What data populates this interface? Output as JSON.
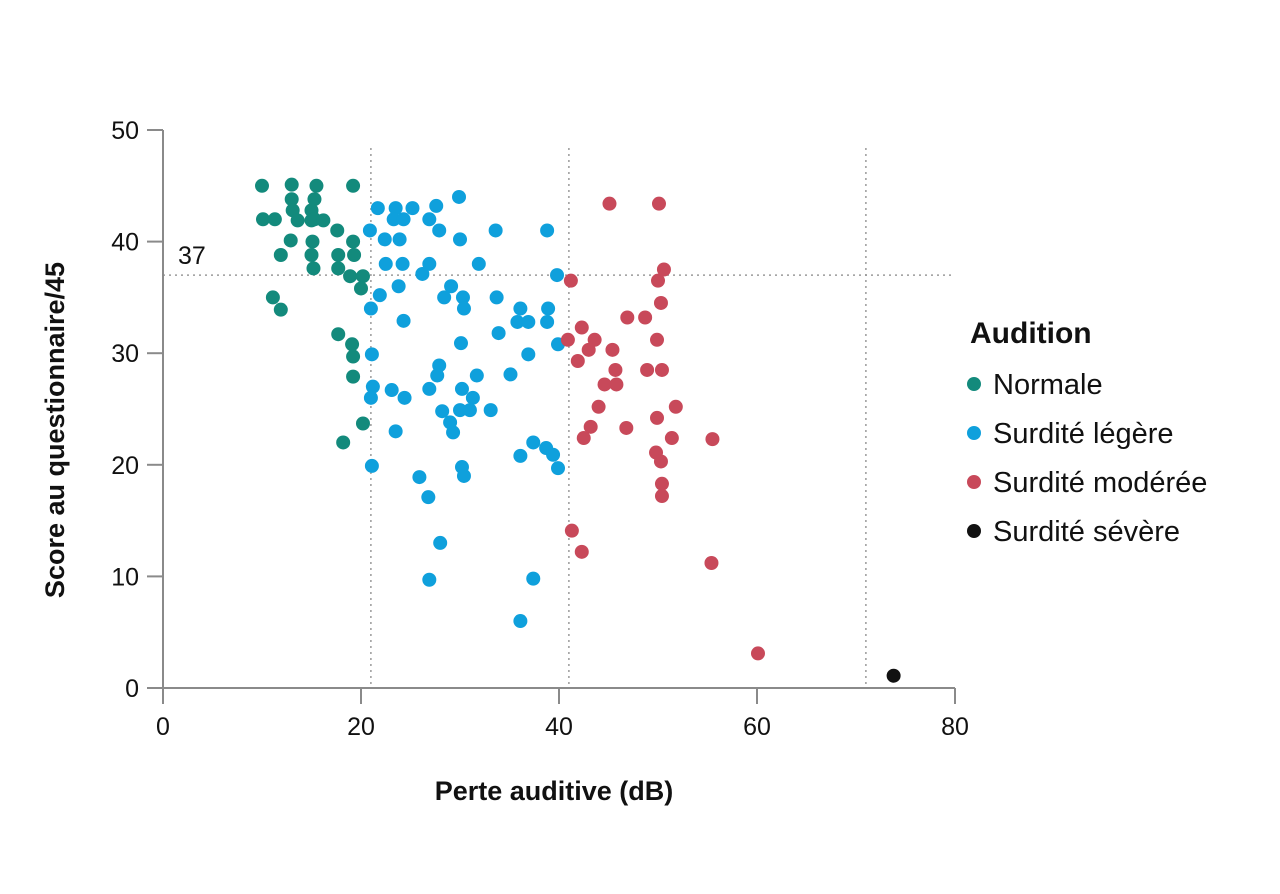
{
  "chart_data": {
    "type": "scatter",
    "xlabel": "Perte auditive (dB)",
    "ylabel": "Score au questionnaire/45",
    "xlim": [
      0,
      80
    ],
    "ylim": [
      0,
      50
    ],
    "xticks": [
      "0",
      "20",
      "40",
      "60",
      "80"
    ],
    "yticks": [
      "0",
      "10",
      "20",
      "30",
      "40",
      "50"
    ],
    "grid": "vertical dotted lines at 21, 41, 71 dB; horizontal dotted line at 37",
    "reference_lines": {
      "x": [
        21,
        41,
        71
      ],
      "y": [
        37
      ],
      "y_label": "37"
    },
    "legend": {
      "title": "Audition",
      "placement": "right",
      "entries": [
        {
          "label": "Normale",
          "color": "#138a7c"
        },
        {
          "label": "Surdité légère",
          "color": "#0fa0dc"
        },
        {
          "label": "Surdité modérée",
          "color": "#c8495a"
        },
        {
          "label": "Surdité sévère",
          "color": "#111111"
        }
      ]
    },
    "series": [
      {
        "name": "Normale",
        "color": "#138a7c",
        "points": [
          [
            10,
            45
          ],
          [
            13,
            45.1
          ],
          [
            15.5,
            45
          ],
          [
            19.2,
            45
          ],
          [
            13,
            43.8
          ],
          [
            15.3,
            43.8
          ],
          [
            13.1,
            42.8
          ],
          [
            15,
            42.8
          ],
          [
            10.1,
            42
          ],
          [
            11.3,
            42
          ],
          [
            13.6,
            41.9
          ],
          [
            15,
            41.9
          ],
          [
            15.3,
            42
          ],
          [
            16.2,
            41.9
          ],
          [
            17.6,
            41
          ],
          [
            12.9,
            40.1
          ],
          [
            15.1,
            40
          ],
          [
            19.2,
            40
          ],
          [
            11.9,
            38.8
          ],
          [
            15,
            38.8
          ],
          [
            17.7,
            38.8
          ],
          [
            19.3,
            38.8
          ],
          [
            15.2,
            37.6
          ],
          [
            17.7,
            37.6
          ],
          [
            18.9,
            36.9
          ],
          [
            20.2,
            36.9
          ],
          [
            20,
            35.8
          ],
          [
            11.1,
            35
          ],
          [
            11.9,
            33.9
          ],
          [
            17.7,
            31.7
          ],
          [
            19.1,
            30.8
          ],
          [
            19.2,
            29.7
          ],
          [
            19.2,
            27.9
          ],
          [
            20.2,
            23.7
          ],
          [
            18.2,
            22
          ]
        ]
      },
      {
        "name": "Surdité légère",
        "color": "#0fa0dc",
        "points": [
          [
            29.9,
            44
          ],
          [
            21.7,
            43
          ],
          [
            23.5,
            43
          ],
          [
            25.2,
            43
          ],
          [
            27.6,
            43.2
          ],
          [
            23.3,
            42
          ],
          [
            24.3,
            42
          ],
          [
            26.9,
            42
          ],
          [
            20.9,
            41
          ],
          [
            27.9,
            41
          ],
          [
            33.6,
            41
          ],
          [
            38.8,
            41
          ],
          [
            22.4,
            40.2
          ],
          [
            23.9,
            40.2
          ],
          [
            30,
            40.2
          ],
          [
            22.5,
            38
          ],
          [
            24.2,
            38
          ],
          [
            26.9,
            38
          ],
          [
            31.9,
            38
          ],
          [
            26.2,
            37.1
          ],
          [
            39.8,
            37
          ],
          [
            23.8,
            36
          ],
          [
            29.1,
            36
          ],
          [
            28.4,
            35
          ],
          [
            30.3,
            35
          ],
          [
            33.7,
            35
          ],
          [
            21.9,
            35.2
          ],
          [
            21,
            34
          ],
          [
            30.4,
            34
          ],
          [
            36.1,
            34
          ],
          [
            38.9,
            34
          ],
          [
            24.3,
            32.9
          ],
          [
            35.8,
            32.8
          ],
          [
            36.9,
            32.8
          ],
          [
            38.8,
            32.8
          ],
          [
            33.9,
            31.8
          ],
          [
            30.1,
            30.9
          ],
          [
            39.9,
            30.8
          ],
          [
            21.1,
            29.9
          ],
          [
            36.9,
            29.9
          ],
          [
            27.9,
            28.9
          ],
          [
            35.1,
            28.1
          ],
          [
            31.7,
            28
          ],
          [
            27.7,
            28
          ],
          [
            21.2,
            27
          ],
          [
            26.9,
            26.8
          ],
          [
            30.2,
            26.8
          ],
          [
            23.1,
            26.7
          ],
          [
            24.4,
            26
          ],
          [
            21,
            26
          ],
          [
            31.3,
            26
          ],
          [
            28.2,
            24.8
          ],
          [
            30,
            24.9
          ],
          [
            31,
            24.9
          ],
          [
            33.1,
            24.9
          ],
          [
            29,
            23.8
          ],
          [
            29.3,
            22.9
          ],
          [
            23.5,
            23
          ],
          [
            37.4,
            22
          ],
          [
            38.7,
            21.5
          ],
          [
            39.4,
            20.9
          ],
          [
            36.1,
            20.8
          ],
          [
            21.1,
            19.9
          ],
          [
            30.2,
            19.8
          ],
          [
            39.9,
            19.7
          ],
          [
            30.4,
            19
          ],
          [
            25.9,
            18.9
          ],
          [
            26.8,
            17.1
          ],
          [
            28,
            13
          ],
          [
            37.4,
            9.8
          ],
          [
            26.9,
            9.7
          ],
          [
            36.1,
            6
          ]
        ]
      },
      {
        "name": "Surdité modérée",
        "color": "#c8495a",
        "points": [
          [
            45.1,
            43.4
          ],
          [
            50.1,
            43.4
          ],
          [
            50.6,
            37.5
          ],
          [
            50,
            36.5
          ],
          [
            41.2,
            36.5
          ],
          [
            50.3,
            34.5
          ],
          [
            46.9,
            33.2
          ],
          [
            48.7,
            33.2
          ],
          [
            42.3,
            32.3
          ],
          [
            40.9,
            31.2
          ],
          [
            43.6,
            31.2
          ],
          [
            49.9,
            31.2
          ],
          [
            43,
            30.3
          ],
          [
            45.4,
            30.3
          ],
          [
            41.9,
            29.3
          ],
          [
            45.7,
            28.5
          ],
          [
            48.9,
            28.5
          ],
          [
            50.4,
            28.5
          ],
          [
            44.6,
            27.2
          ],
          [
            45.8,
            27.2
          ],
          [
            44,
            25.2
          ],
          [
            51.8,
            25.2
          ],
          [
            49.9,
            24.2
          ],
          [
            43.2,
            23.4
          ],
          [
            46.8,
            23.3
          ],
          [
            42.5,
            22.4
          ],
          [
            51.4,
            22.4
          ],
          [
            55.5,
            22.3
          ],
          [
            49.8,
            21.1
          ],
          [
            50.3,
            20.3
          ],
          [
            50.4,
            18.3
          ],
          [
            50.4,
            17.2
          ],
          [
            41.3,
            14.1
          ],
          [
            42.3,
            12.2
          ],
          [
            55.4,
            11.2
          ],
          [
            60.1,
            3.1
          ]
        ]
      },
      {
        "name": "Surdité sévère",
        "color": "#111111",
        "points": [
          [
            73.8,
            1.1
          ]
        ]
      }
    ]
  }
}
